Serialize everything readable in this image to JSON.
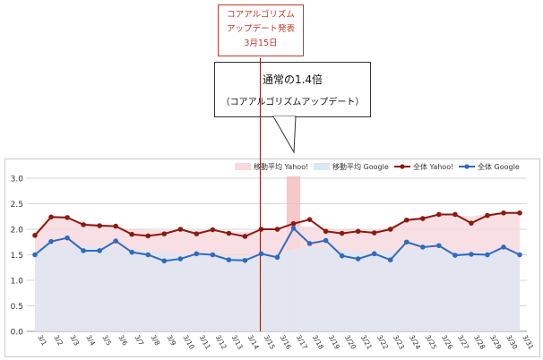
{
  "annotation": {
    "line1": "コアアルゴリズム",
    "line2": "アップデート発表",
    "line3": "3月15日"
  },
  "callout": {
    "main": "通常の1.4倍",
    "sub": "（コアアルゴリズムアップデート）"
  },
  "colors": {
    "yahoo": "#8b1a10",
    "google": "#2e6bc0",
    "yahoo_ma_fill": "#f7d9de",
    "google_ma_fill": "#dfe6f3",
    "highlight": "#f4b6b6",
    "announce_line": "#8b1a10"
  },
  "chart_data": {
    "type": "line",
    "title": "",
    "xlabel": "",
    "ylabel": "",
    "ylim": [
      0,
      3.0
    ],
    "yticks": [
      "0.0",
      "0.5",
      "1.0",
      "1.5",
      "2.0",
      "2.5",
      "3.0"
    ],
    "grid": true,
    "legend_position": "top-right",
    "categories": [
      "3/1",
      "3/2",
      "3/3",
      "3/4",
      "3/5",
      "3/6",
      "3/7",
      "3/8",
      "3/9",
      "3/10",
      "3/11",
      "3/12",
      "3/13",
      "3/14",
      "3/15",
      "3/16",
      "3/17",
      "3/18",
      "3/19",
      "3/20",
      "3/21",
      "3/22",
      "3/23",
      "3/24",
      "3/25",
      "3/26",
      "3/27",
      "3/28",
      "3/29",
      "3/30",
      "3/31"
    ],
    "highlight_category": "3/17",
    "announce_category": "3/15",
    "series": [
      {
        "name": "全体 Yahoo!",
        "kind": "line",
        "color_key": "yahoo",
        "values": [
          1.88,
          2.24,
          2.23,
          2.09,
          2.07,
          2.06,
          1.9,
          1.87,
          1.91,
          2.0,
          1.91,
          1.99,
          1.92,
          1.86,
          2.0,
          2.0,
          2.11,
          2.19,
          1.96,
          1.92,
          1.96,
          1.93,
          2.0,
          2.18,
          2.21,
          2.29,
          2.29,
          2.12,
          2.27,
          2.32,
          2.32
        ]
      },
      {
        "name": "全体 Google",
        "kind": "line",
        "color_key": "google",
        "values": [
          1.5,
          1.76,
          1.83,
          1.58,
          1.58,
          1.77,
          1.55,
          1.5,
          1.38,
          1.42,
          1.52,
          1.5,
          1.4,
          1.39,
          1.52,
          1.45,
          2.02,
          1.72,
          1.78,
          1.48,
          1.42,
          1.52,
          1.4,
          1.75,
          1.65,
          1.68,
          1.49,
          1.51,
          1.5,
          1.65,
          1.5
        ]
      },
      {
        "name": "移動平均 Yahoo!",
        "kind": "area",
        "color_key": "yahoo_ma_fill",
        "values": [
          1.95,
          2.25,
          2.22,
          2.12,
          2.1,
          2.05,
          2.0,
          1.98,
          1.98,
          1.98,
          1.98,
          1.98,
          1.96,
          1.95,
          1.96,
          1.98,
          2.05,
          2.06,
          2.02,
          2.0,
          1.98,
          1.98,
          2.05,
          2.2,
          2.25,
          2.28,
          2.28,
          2.25,
          2.3,
          2.33,
          2.35
        ]
      },
      {
        "name": "移動平均 Google",
        "kind": "area",
        "color_key": "google_ma_fill",
        "values": [
          1.55,
          1.72,
          1.72,
          1.68,
          1.66,
          1.64,
          1.6,
          1.58,
          1.55,
          1.52,
          1.5,
          1.5,
          1.48,
          1.47,
          1.48,
          1.5,
          1.62,
          1.64,
          1.64,
          1.6,
          1.56,
          1.53,
          1.55,
          1.62,
          1.62,
          1.62,
          1.58,
          1.56,
          1.56,
          1.58,
          1.57
        ]
      }
    ]
  },
  "legend": {
    "items": [
      {
        "label": "移動平均 Yahoo!",
        "style": "box",
        "color_key": "yahoo_ma_fill"
      },
      {
        "label": "移動平均 Google",
        "style": "box",
        "color_key": "google_ma_fill"
      },
      {
        "label": "全体 Yahoo!",
        "style": "line",
        "color_key": "yahoo"
      },
      {
        "label": "全体 Google",
        "style": "line",
        "color_key": "google"
      }
    ]
  }
}
